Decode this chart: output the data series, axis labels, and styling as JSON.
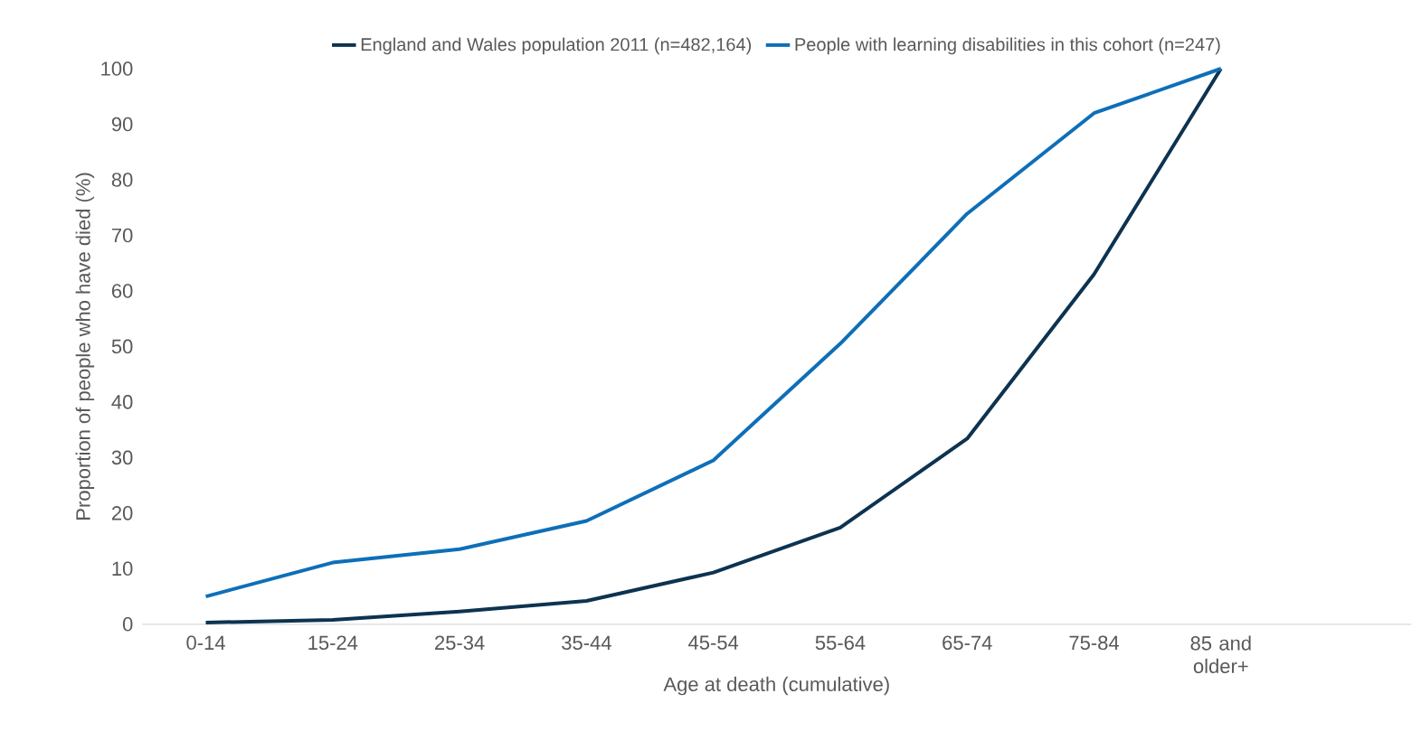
{
  "chart_data": {
    "type": "line",
    "categories": [
      "0-14",
      "15-24",
      "25-34",
      "35-44",
      "45-54",
      "55-64",
      "65-74",
      "75-84",
      "85 and older+",
      null
    ],
    "xlabel": "Age at death (cumulative)",
    "ylabel": "Proportion of people who have died (%)",
    "ylim": [
      0,
      100
    ],
    "yticks": [
      0,
      10,
      20,
      30,
      40,
      50,
      60,
      70,
      80,
      90,
      100
    ],
    "legend": "top",
    "series": [
      {
        "name": "England and Wales population 2011 (n=482,164)",
        "color": "#0d3350",
        "values": [
          0.3,
          0.8,
          2.3,
          4.2,
          9.3,
          17.4,
          33.4,
          63,
          100,
          null
        ]
      },
      {
        "name": "People with learning disabilities in this cohort (n=247)",
        "color": "#0e6fb8",
        "values": [
          5.0,
          11.1,
          13.5,
          18.6,
          29.5,
          50.5,
          73.9,
          92,
          100,
          null
        ]
      }
    ]
  }
}
